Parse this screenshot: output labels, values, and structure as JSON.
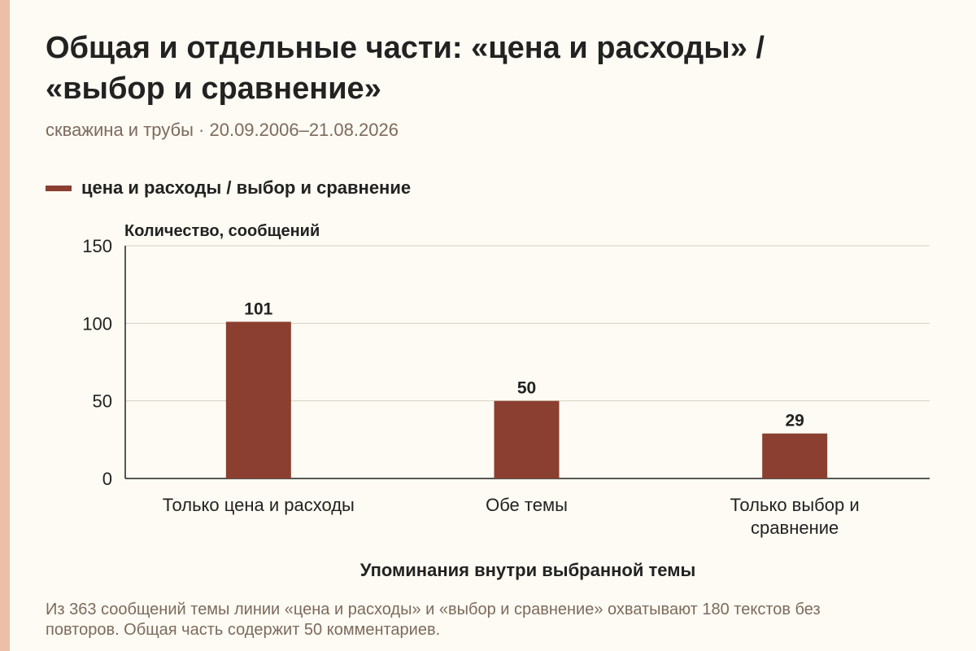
{
  "title": "Общая и отдельные части: «цена и расходы» / «выбор и сравнение»",
  "subtitle": "скважина и трубы · 20.09.2006–21.08.2026",
  "legend": {
    "label": "цена и расходы / выбор и сравнение"
  },
  "colors": {
    "bar": "#8b3f30",
    "accent_stripe": "#ebc0a6",
    "background": "#fdfbf3"
  },
  "chart_data": {
    "type": "bar",
    "categories": [
      "Только цена и расходы",
      "Обе темы",
      "Только выбор и сравнение"
    ],
    "series": [
      {
        "name": "цена и расходы / выбор и сравнение",
        "values": [
          101,
          50,
          29
        ]
      }
    ],
    "ylabel": "Количество, сообщений",
    "xlabel": "Упоминания внутри выбранной темы",
    "ylim": [
      0,
      150
    ],
    "yticks": [
      0,
      50,
      100,
      150
    ],
    "grid": true,
    "legend_position": "top-left"
  },
  "caption": "Из 363 сообщений темы линии «цена и расходы» и «выбор и сравнение» охватывают 180 текстов без повторов. Общая часть содержит 50 комментариев."
}
